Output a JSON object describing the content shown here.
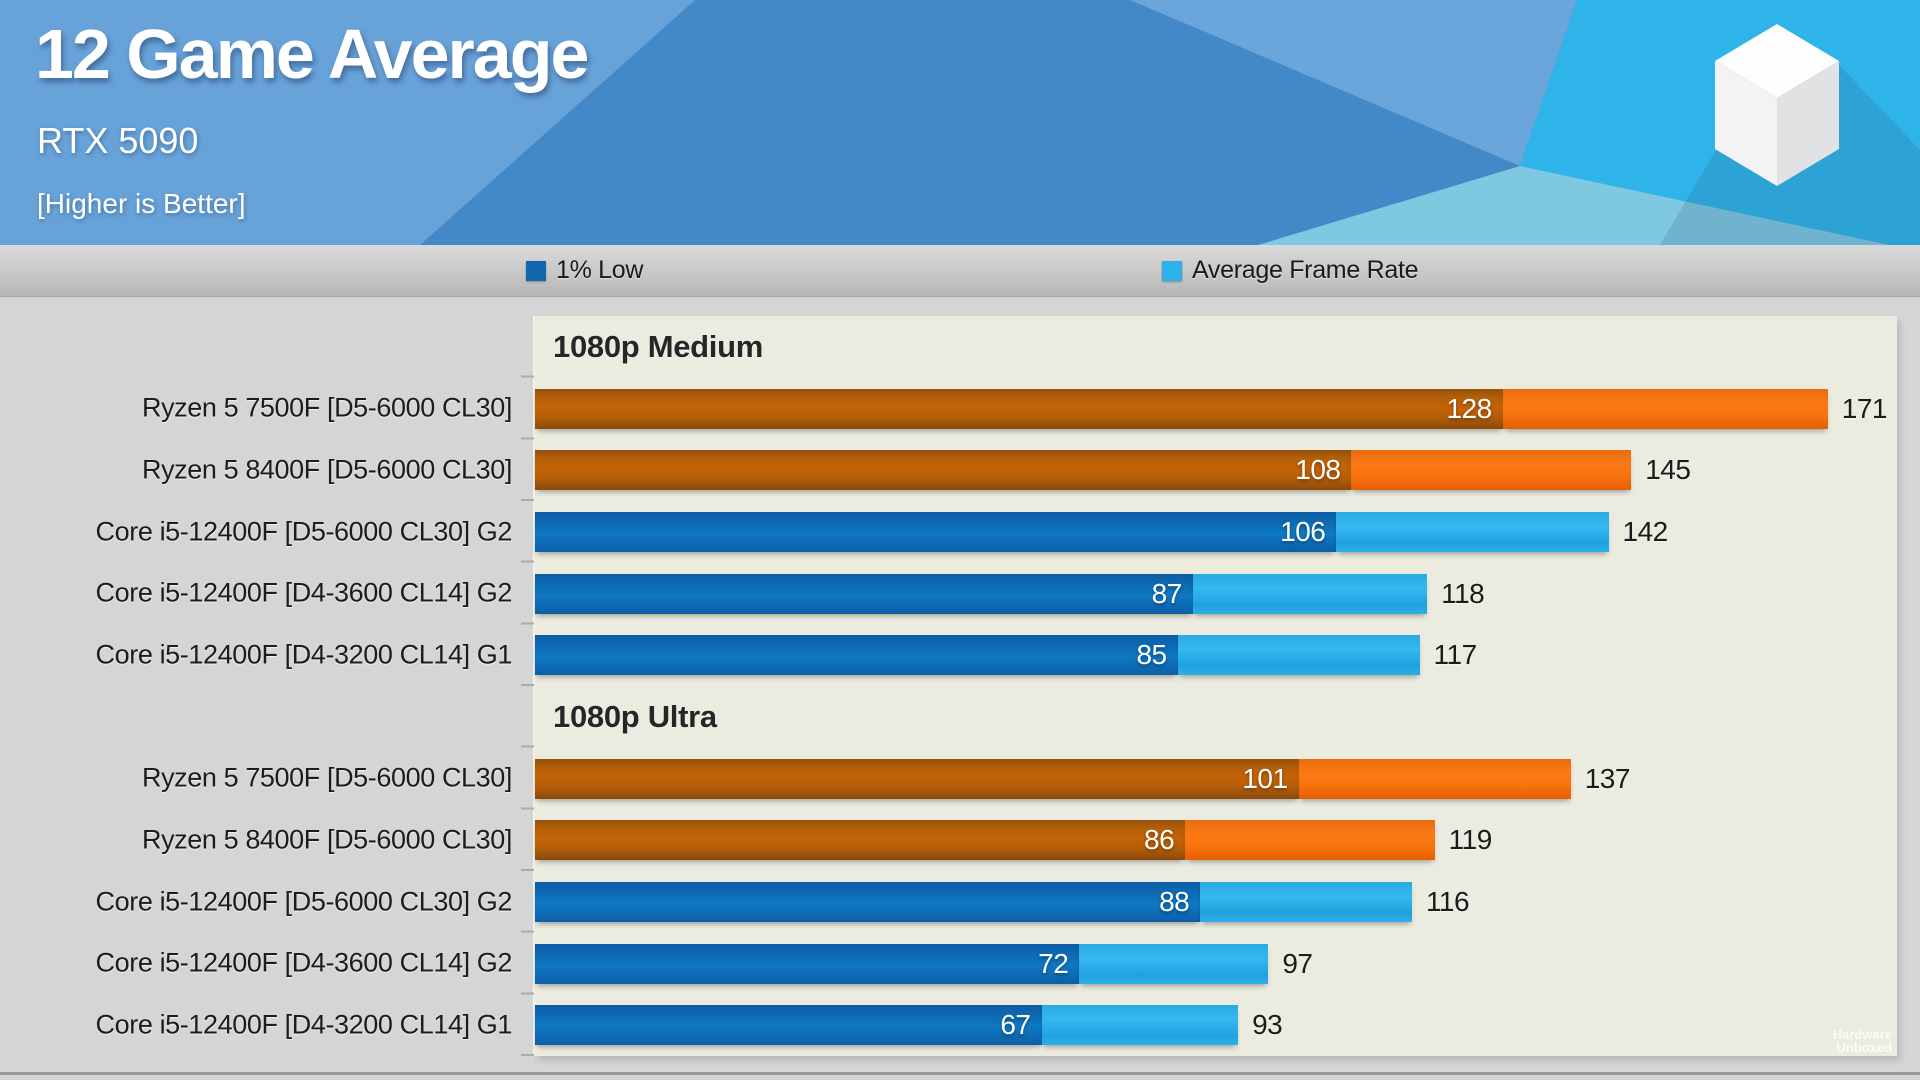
{
  "header": {
    "title": "12 Game Average",
    "subtitle": "RTX 5090",
    "note": "[Higher is Better]"
  },
  "legend": [
    {
      "label": "1% Low",
      "color": "#1566b0"
    },
    {
      "label": "Average Frame Rate",
      "color": "#2cb1ea"
    }
  ],
  "watermark": {
    "line1": "Hardware",
    "line2": "Unboxed"
  },
  "colors": {
    "amd_low": "#b45f08",
    "amd_avg": "#f8740f",
    "intel_low": "#0e71bc",
    "intel_avg": "#28ace6",
    "panel_background": "#ecebe0",
    "canvas_background": "#d5d5d5",
    "header_base": "#4389c7",
    "header_light": "#67a3d9",
    "header_cyan": "#2fb4e9",
    "header_teal": "#7ec8e2",
    "legend_bar": "#c8c8c8"
  },
  "chart_data": {
    "type": "bar",
    "orientation": "horizontal",
    "title": "12 Game Average",
    "subtitle": "RTX 5090",
    "higher_is_better": true,
    "unit": "FPS",
    "series_names": [
      "1% Low",
      "Average Frame Rate"
    ],
    "x_axis": {
      "min": 0,
      "implied_max": 183,
      "gridlines": false
    },
    "legend_position": "top",
    "sections": [
      {
        "title": "1080p Medium",
        "rows": [
          {
            "label": "Ryzen 5 7500F [D5-6000 CL30]",
            "vendor": "amd",
            "low": 128,
            "avg": 171
          },
          {
            "label": "Ryzen 5 8400F [D5-6000 CL30]",
            "vendor": "amd",
            "low": 108,
            "avg": 145
          },
          {
            "label": "Core i5-12400F [D5-6000 CL30] G2",
            "vendor": "intel",
            "low": 106,
            "avg": 142
          },
          {
            "label": "Core i5-12400F [D4-3600 CL14] G2",
            "vendor": "intel",
            "low": 87,
            "avg": 118
          },
          {
            "label": "Core i5-12400F [D4-3200 CL14] G1",
            "vendor": "intel",
            "low": 85,
            "avg": 117
          }
        ]
      },
      {
        "title": "1080p Ultra",
        "rows": [
          {
            "label": "Ryzen 5 7500F [D5-6000 CL30]",
            "vendor": "amd",
            "low": 101,
            "avg": 137
          },
          {
            "label": "Ryzen 5 8400F [D5-6000 CL30]",
            "vendor": "amd",
            "low": 86,
            "avg": 119
          },
          {
            "label": "Core i5-12400F [D5-6000 CL30] G2",
            "vendor": "intel",
            "low": 88,
            "avg": 116
          },
          {
            "label": "Core i5-12400F [D4-3600 CL14] G2",
            "vendor": "intel",
            "low": 72,
            "avg": 97
          },
          {
            "label": "Core i5-12400F [D4-3200 CL14] G1",
            "vendor": "intel",
            "low": 67,
            "avg": 93
          }
        ]
      }
    ]
  }
}
